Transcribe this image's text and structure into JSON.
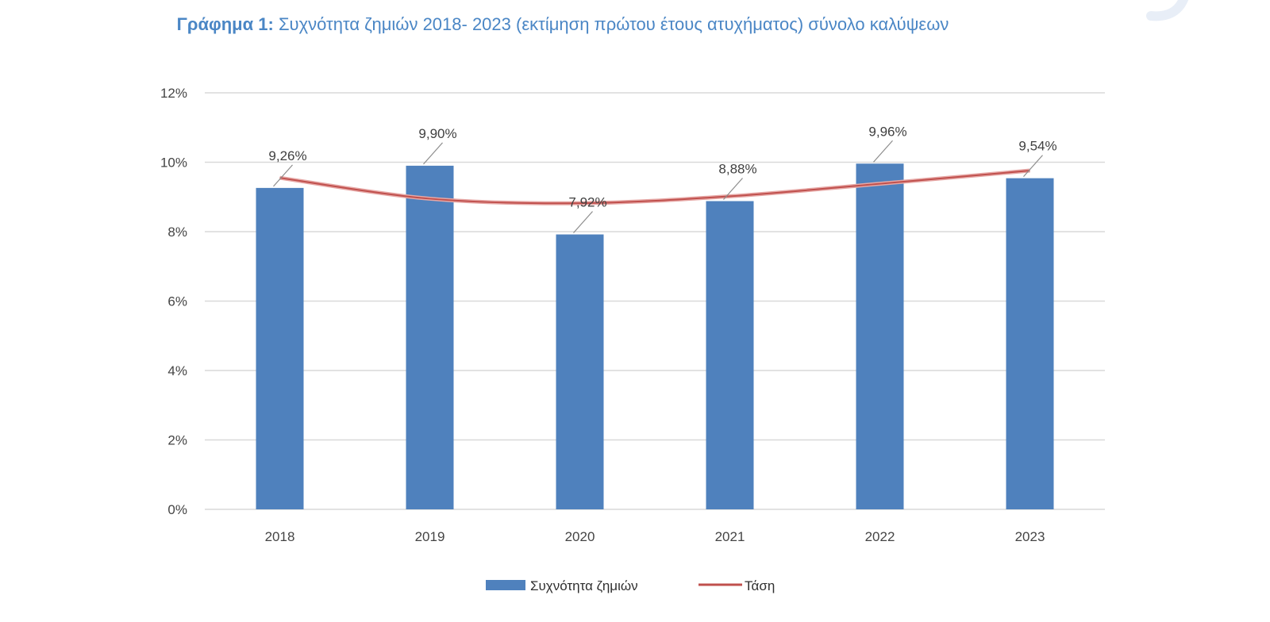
{
  "title": {
    "prefix": "Γράφημα 1:",
    "text": " Συχνότητα ζημιών 2018- 2023 (εκτίμηση πρώτου έτους ατυχήματος) σύνολο καλύψεων"
  },
  "colors": {
    "title": "#4a86c5",
    "bar": "#4f81bd",
    "trend": "#c0504d",
    "grid": "#d9d9d9"
  },
  "chart_data": {
    "type": "bar",
    "categories": [
      "2018",
      "2019",
      "2020",
      "2021",
      "2022",
      "2023"
    ],
    "series": [
      {
        "name": "Συχνότητα ζημιών",
        "values": [
          9.26,
          9.9,
          7.92,
          8.88,
          9.96,
          9.54
        ],
        "labels": [
          "9,26%",
          "9,90%",
          "7,92%",
          "8,88%",
          "9,96%",
          "9,54%"
        ]
      },
      {
        "name": "Τάση",
        "type": "line",
        "trendline": "polynomial",
        "values": [
          9.55,
          8.95,
          8.82,
          9.02,
          9.38,
          9.76
        ]
      }
    ],
    "ylim": [
      0,
      12
    ],
    "yticks": [
      0,
      2,
      4,
      6,
      8,
      10,
      12
    ],
    "ytick_labels": [
      "0%",
      "2%",
      "4%",
      "6%",
      "8%",
      "10%",
      "12%"
    ],
    "grid": true,
    "legend": "bottom"
  }
}
